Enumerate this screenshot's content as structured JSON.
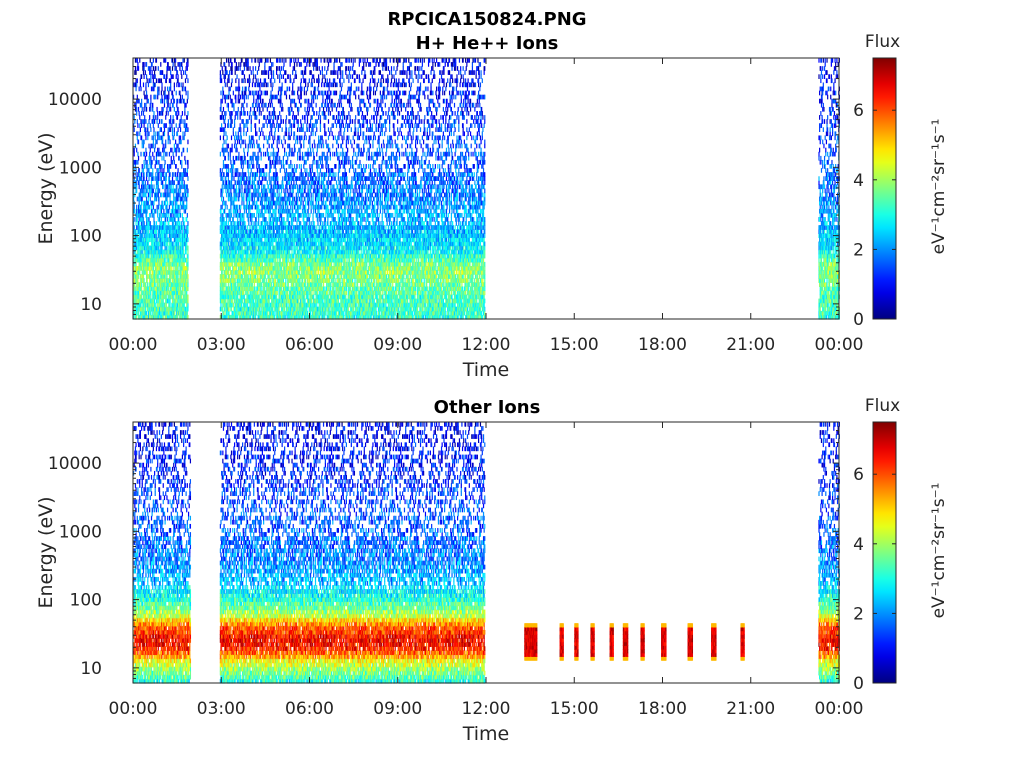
{
  "figure": {
    "title_lines": [
      "RPCICA150824.PNG",
      "H+ He++ Ions"
    ]
  },
  "chart_data": [
    {
      "type": "heatmap",
      "title": "H+ He++ Ions",
      "xlabel": "Time",
      "ylabel": "Energy (eV)",
      "x_ticks": [
        "00:00",
        "03:00",
        "06:00",
        "09:00",
        "12:00",
        "15:00",
        "18:00",
        "21:00",
        "00:00"
      ],
      "x_range_hours": [
        0,
        24
      ],
      "y_scale": "log",
      "y_ticks": [
        "10",
        "100",
        "1000",
        "10000"
      ],
      "y_range_ev": [
        6,
        40000
      ],
      "colorbar": {
        "label": "Flux",
        "units": "eV⁻¹cm⁻²sr⁻¹s⁻¹",
        "ticks": [
          "0",
          "2",
          "4",
          "6"
        ],
        "range": [
          0,
          7.5
        ],
        "colormap": "jet"
      },
      "data_intervals_hours": [
        [
          0.0,
          1.85
        ],
        [
          2.95,
          11.95
        ],
        [
          23.3,
          24.0
        ]
      ],
      "level_profile_ev_flux": [
        [
          6,
          3.2
        ],
        [
          12,
          3.3
        ],
        [
          20,
          3.6
        ],
        [
          35,
          3.9
        ],
        [
          60,
          2.8
        ],
        [
          120,
          2.3
        ],
        [
          300,
          2.0
        ],
        [
          1000,
          1.6
        ],
        [
          5000,
          1.3
        ],
        [
          15000,
          1.1
        ],
        [
          40000,
          0.7
        ]
      ],
      "bands": []
    },
    {
      "type": "heatmap",
      "title": "Other Ions",
      "xlabel": "Time",
      "ylabel": "Energy (eV)",
      "x_ticks": [
        "00:00",
        "03:00",
        "06:00",
        "09:00",
        "12:00",
        "15:00",
        "18:00",
        "21:00",
        "00:00"
      ],
      "x_range_hours": [
        0,
        24
      ],
      "y_scale": "log",
      "y_ticks": [
        "10",
        "100",
        "1000",
        "10000"
      ],
      "y_range_ev": [
        6,
        40000
      ],
      "colorbar": {
        "label": "Flux",
        "units": "eV⁻¹cm⁻²sr⁻¹s⁻¹",
        "ticks": [
          "0",
          "2",
          "4",
          "6"
        ],
        "range": [
          0,
          7.5
        ],
        "colormap": "jet"
      },
      "data_intervals_hours": [
        [
          0.0,
          1.95
        ],
        [
          2.95,
          11.95
        ],
        [
          23.3,
          24.0
        ]
      ],
      "level_profile_ev_flux": [
        [
          6,
          3.0
        ],
        [
          12,
          4.4
        ],
        [
          18,
          6.2
        ],
        [
          25,
          6.6
        ],
        [
          40,
          6.0
        ],
        [
          60,
          4.2
        ],
        [
          100,
          3.1
        ],
        [
          200,
          2.2
        ],
        [
          1000,
          1.6
        ],
        [
          5000,
          1.3
        ],
        [
          12000,
          1.1
        ],
        [
          40000,
          0.8
        ]
      ],
      "bands": [
        {
          "t0_hours": 13.3,
          "t1_hours": 13.7,
          "e_min_ev": 13,
          "e_max_ev": 45
        },
        {
          "t0_hours": 14.5,
          "t1_hours": 14.6,
          "e_min_ev": 13,
          "e_max_ev": 45
        },
        {
          "t0_hours": 15.0,
          "t1_hours": 15.1,
          "e_min_ev": 13,
          "e_max_ev": 45
        },
        {
          "t0_hours": 15.55,
          "t1_hours": 15.65,
          "e_min_ev": 13,
          "e_max_ev": 45
        },
        {
          "t0_hours": 16.2,
          "t1_hours": 16.3,
          "e_min_ev": 13,
          "e_max_ev": 45
        },
        {
          "t0_hours": 16.65,
          "t1_hours": 16.8,
          "e_min_ev": 13,
          "e_max_ev": 45
        },
        {
          "t0_hours": 17.25,
          "t1_hours": 17.35,
          "e_min_ev": 13,
          "e_max_ev": 45
        },
        {
          "t0_hours": 17.95,
          "t1_hours": 18.1,
          "e_min_ev": 13,
          "e_max_ev": 45
        },
        {
          "t0_hours": 18.85,
          "t1_hours": 19.0,
          "e_min_ev": 13,
          "e_max_ev": 45
        },
        {
          "t0_hours": 19.65,
          "t1_hours": 19.8,
          "e_min_ev": 13,
          "e_max_ev": 45
        },
        {
          "t0_hours": 20.65,
          "t1_hours": 20.75,
          "e_min_ev": 13,
          "e_max_ev": 45
        }
      ]
    }
  ]
}
